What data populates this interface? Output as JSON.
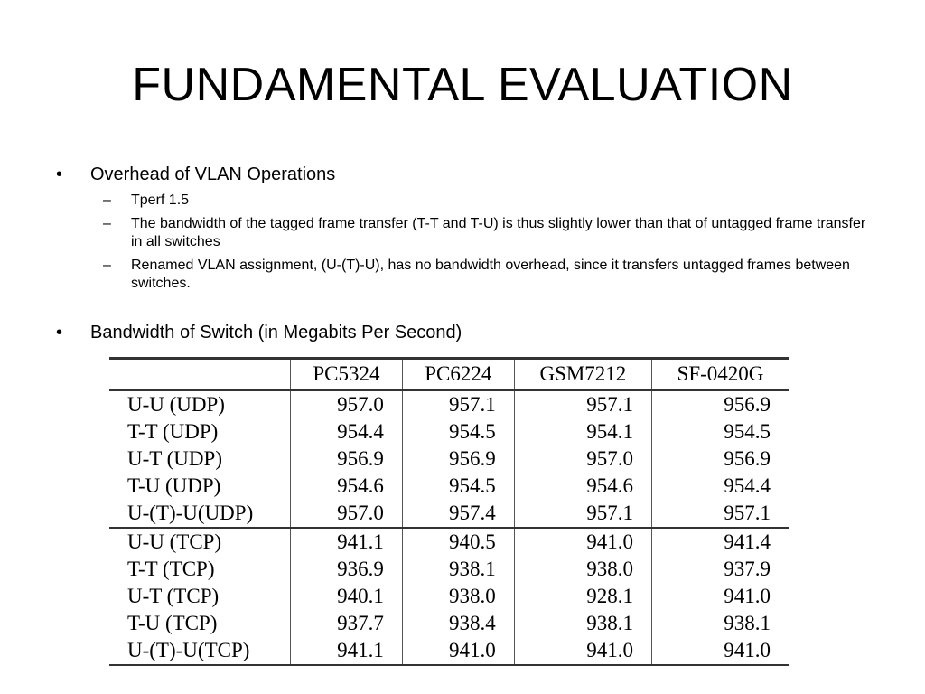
{
  "slide": {
    "title": "FUNDAMENTAL EVALUATION"
  },
  "bullets": [
    {
      "text": "Overhead of VLAN Operations",
      "marker": "•",
      "subitems": [
        {
          "marker": "–",
          "text": "Tperf 1.5"
        },
        {
          "marker": "–",
          "text": "The bandwidth of the tagged frame transfer (T-T and T-U) is thus slightly lower than that of untagged frame transfer in all switches"
        },
        {
          "marker": "–",
          "text": "Renamed VLAN assignment, (U-(T)-U), has no bandwidth overhead, since it transfers untagged frames between switches."
        }
      ]
    },
    {
      "text": "Bandwidth of Switch (in Megabits Per Second)",
      "marker": "•",
      "subitems": []
    }
  ],
  "table": {
    "columns": [
      "",
      "PC5324",
      "PC6224",
      "GSM7212",
      "SF-0420G"
    ],
    "groups": [
      {
        "rows": [
          {
            "label": "U-U  (UDP)",
            "values": [
              "957.0",
              "957.1",
              "957.1",
              "956.9"
            ]
          },
          {
            "label": "T-T  (UDP)",
            "values": [
              "954.4",
              "954.5",
              "954.1",
              "954.5"
            ]
          },
          {
            "label": "U-T  (UDP)",
            "values": [
              "956.9",
              "956.9",
              "957.0",
              "956.9"
            ]
          },
          {
            "label": "T-U  (UDP)",
            "values": [
              "954.6",
              "954.5",
              "954.6",
              "954.4"
            ]
          },
          {
            "label": "U-(T)-U(UDP)",
            "values": [
              "957.0",
              "957.4",
              "957.1",
              "957.1"
            ]
          }
        ]
      },
      {
        "rows": [
          {
            "label": "U-U  (TCP)",
            "values": [
              "941.1",
              "940.5",
              "941.0",
              "941.4"
            ]
          },
          {
            "label": "T-T  (TCP)",
            "values": [
              "936.9",
              "938.1",
              "938.0",
              "937.9"
            ]
          },
          {
            "label": "U-T  (TCP)",
            "values": [
              "940.1",
              "938.0",
              "928.1",
              "941.0"
            ]
          },
          {
            "label": "T-U  (TCP)",
            "values": [
              "937.7",
              "938.4",
              "938.1",
              "938.1"
            ]
          },
          {
            "label": "U-(T)-U(TCP)",
            "values": [
              "941.1",
              "941.0",
              "941.0",
              "941.0"
            ]
          }
        ]
      }
    ]
  }
}
